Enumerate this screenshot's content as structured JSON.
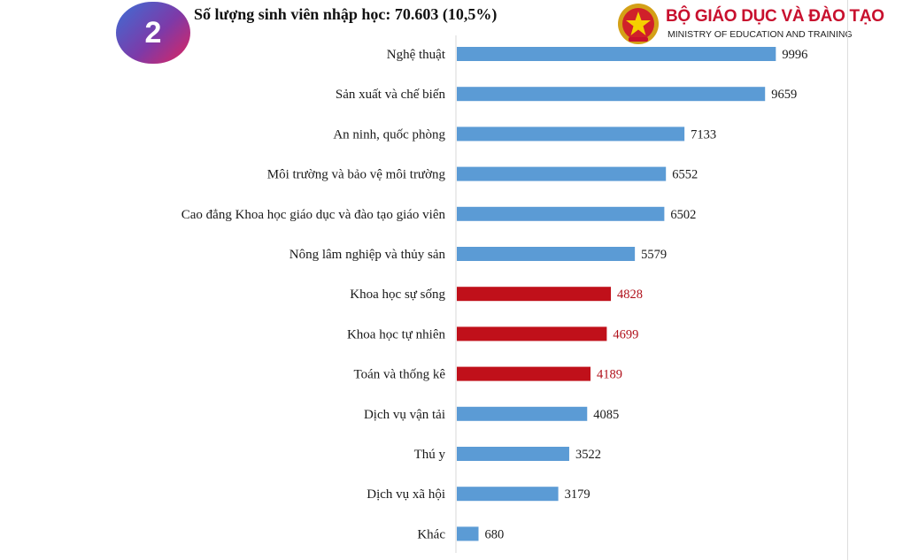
{
  "header": {
    "badge_number": "2",
    "title": "Số lượng sinh viên nhập học: 70.603 (10,5%)"
  },
  "logo": {
    "emblem_icon": "national-emblem-icon",
    "org_name": "BỘ GIÁO DỤC VÀ ĐÀO TẠO",
    "org_subtitle": "MINISTRY OF EDUCATION AND TRAINING"
  },
  "colors": {
    "normal_bar": "#5b9bd5",
    "highlight_bar": "#c0101a",
    "normal_value_text": "#1a1a1a",
    "highlight_value_text": "#b0101a"
  },
  "chart_data": {
    "type": "bar",
    "orientation": "horizontal",
    "categories": [
      "Nghệ thuật",
      "Sản xuất và chế biến",
      "An ninh, quốc phòng",
      "Môi trường và bảo vệ môi trường",
      "Cao đẳng Khoa học giáo dục và đào tạo giáo viên",
      "Nông lâm nghiệp và thủy sản",
      "Khoa học sự sống",
      "Khoa học tự nhiên",
      "Toán và thống kê",
      "Dịch vụ vận tải",
      "Thú y",
      "Dịch vụ xã hội",
      "Khác"
    ],
    "values": [
      9996,
      9659,
      7133,
      6552,
      6502,
      5579,
      4828,
      4699,
      4189,
      4085,
      3522,
      3179,
      680
    ],
    "value_labels": [
      "9996",
      "9659",
      "7133",
      "6552",
      "6502",
      "5579",
      "4828",
      "4699",
      "4189",
      "4085",
      "3522",
      "3179",
      "680"
    ],
    "highlighted": [
      "Khoa học sự sống",
      "Khoa học tự nhiên",
      "Toán và thống kê"
    ],
    "xlim": [
      0,
      10000
    ],
    "grid": false,
    "legend": "none"
  }
}
